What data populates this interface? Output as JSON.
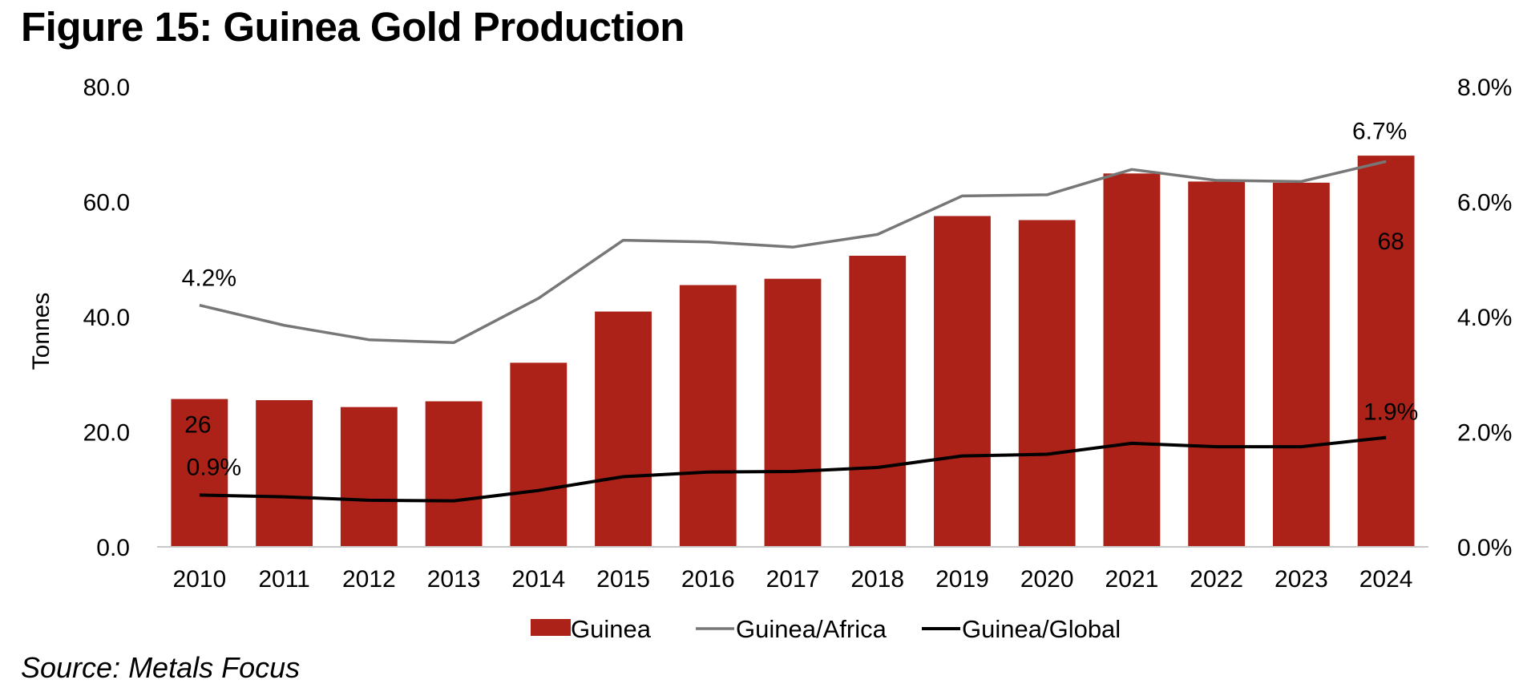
{
  "title": "Figure 15: Guinea Gold Production",
  "source": "Source: Metals Focus",
  "colors": {
    "bar": "#ac2218",
    "africa": "#777777",
    "global": "#000000",
    "axis": "#c8c8c8"
  },
  "chart_data": {
    "type": "bar",
    "title": "Figure 15: Guinea Gold Production",
    "categories": [
      "2010",
      "2011",
      "2012",
      "2013",
      "2014",
      "2015",
      "2016",
      "2017",
      "2018",
      "2019",
      "2020",
      "2021",
      "2022",
      "2023",
      "2024"
    ],
    "ylabel": "Tonnes",
    "ylim": [
      0,
      80
    ],
    "y_ticks": [
      "0.0",
      "20.0",
      "40.0",
      "60.0",
      "80.0"
    ],
    "y2lim": [
      0,
      0.08
    ],
    "y2_ticks": [
      "0.0%",
      "2.0%",
      "4.0%",
      "6.0%",
      "8.0%"
    ],
    "grid": false,
    "legend_position": "bottom",
    "series": [
      {
        "name": "Guinea",
        "type": "bar",
        "axis": "left",
        "values": [
          25.7,
          25.5,
          24.3,
          25.3,
          32.0,
          40.9,
          45.5,
          46.6,
          50.6,
          57.5,
          56.8,
          64.9,
          63.5,
          63.3,
          68.0
        ]
      },
      {
        "name": "Guinea/Africa",
        "type": "line",
        "axis": "right",
        "values": [
          0.042,
          0.0385,
          0.036,
          0.0355,
          0.0432,
          0.0533,
          0.053,
          0.0521,
          0.0543,
          0.061,
          0.0612,
          0.0656,
          0.0637,
          0.0635,
          0.067
        ]
      },
      {
        "name": "Guinea/Global",
        "type": "line",
        "axis": "right",
        "values": [
          0.009,
          0.0087,
          0.0081,
          0.008,
          0.0098,
          0.0122,
          0.013,
          0.0131,
          0.0138,
          0.0158,
          0.0161,
          0.018,
          0.0174,
          0.0174,
          0.019
        ]
      }
    ],
    "data_labels": [
      {
        "series": "Guinea",
        "index": 0,
        "text": "26"
      },
      {
        "series": "Guinea",
        "index": 14,
        "text": "68"
      },
      {
        "series": "Guinea/Africa",
        "index": 0,
        "text": "4.2%"
      },
      {
        "series": "Guinea/Africa",
        "index": 14,
        "text": "6.7%"
      },
      {
        "series": "Guinea/Global",
        "index": 0,
        "text": "0.9%"
      },
      {
        "series": "Guinea/Global",
        "index": 14,
        "text": "1.9%"
      }
    ]
  }
}
